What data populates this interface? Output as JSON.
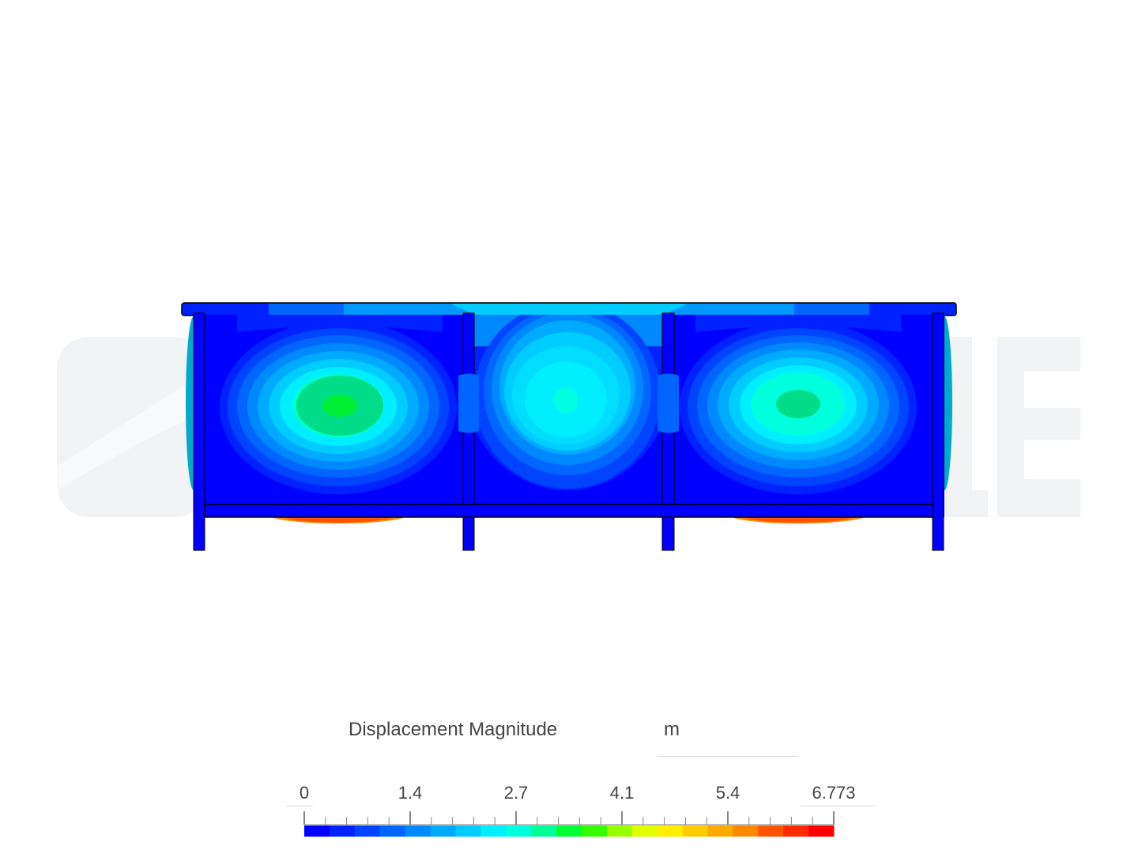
{
  "legend": {
    "title": "Displacement Magnitude",
    "unit": "m",
    "ticks": [
      "0",
      "1.4",
      "2.7",
      "4.1",
      "5.4",
      "6.773"
    ],
    "min": 0,
    "max": 6.773,
    "colormap": [
      "#0000ff",
      "#0022ff",
      "#0044ff",
      "#0066ff",
      "#0088ff",
      "#00aaff",
      "#00ccff",
      "#00eeff",
      "#00ffdd",
      "#00ff99",
      "#00ff33",
      "#33ff00",
      "#99ff00",
      "#ddff00",
      "#ffee00",
      "#ffcc00",
      "#ffaa00",
      "#ff8800",
      "#ff5500",
      "#ff2a00",
      "#ff0000"
    ]
  },
  "watermark": {
    "color": "#f3f4f6"
  },
  "model": {
    "background_color": "#0000ff",
    "outline_color": "#000000",
    "regions": [
      "left-panel",
      "middle-panel",
      "right-panel"
    ]
  }
}
